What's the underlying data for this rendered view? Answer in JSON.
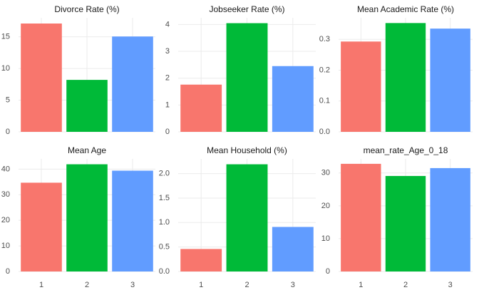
{
  "chart_data": [
    {
      "type": "bar",
      "title": "Divorce Rate (%)",
      "categories": [
        "1",
        "2",
        "3"
      ],
      "values": [
        17.1,
        8.2,
        15.05
      ],
      "color": [
        "#F8766D",
        "#00BA38",
        "#619CFF"
      ],
      "ylim": [
        0,
        18
      ],
      "yticks": [
        0,
        5,
        10,
        15
      ],
      "grid": true
    },
    {
      "type": "bar",
      "title": "Jobseeker Rate (%)",
      "categories": [
        "1",
        "2",
        "3"
      ],
      "values": [
        1.76,
        4.05,
        2.45
      ],
      "color": [
        "#F8766D",
        "#00BA38",
        "#619CFF"
      ],
      "ylim": [
        0,
        4.25
      ],
      "yticks": [
        0,
        1,
        2,
        3,
        4
      ],
      "grid": true
    },
    {
      "type": "bar",
      "title": "Mean Academic Rate (%)",
      "categories": [
        "1",
        "2",
        "3"
      ],
      "values": [
        0.293,
        0.353,
        0.335
      ],
      "color": [
        "#F8766D",
        "#00BA38",
        "#619CFF"
      ],
      "ylim": [
        0,
        0.37
      ],
      "yticks": [
        {
          "value": 0,
          "label": "0.0"
        },
        0.1,
        0.2,
        0.3
      ],
      "grid": true
    },
    {
      "type": "bar",
      "title": "Mean Age",
      "categories": [
        "1",
        "2",
        "3"
      ],
      "values": [
        34.7,
        41.9,
        39.4
      ],
      "color": [
        "#F8766D",
        "#00BA38",
        "#619CFF"
      ],
      "ylim": [
        0,
        44
      ],
      "yticks": [
        0,
        10,
        20,
        30,
        40
      ],
      "grid": true
    },
    {
      "type": "bar",
      "title": "Mean Household (%)",
      "categories": [
        "1",
        "2",
        "3"
      ],
      "values": [
        0.46,
        2.19,
        0.91
      ],
      "color": [
        "#F8766D",
        "#00BA38",
        "#619CFF"
      ],
      "ylim": [
        0,
        2.3
      ],
      "yticks": [
        {
          "value": 0,
          "label": "0.0"
        },
        0.5,
        {
          "value": 1,
          "label": "1.0"
        },
        1.5,
        {
          "value": 2,
          "label": "2.0"
        }
      ],
      "grid": true
    },
    {
      "type": "bar",
      "title": "mean_rate_Age_0_18",
      "categories": [
        "1",
        "2",
        "3"
      ],
      "values": [
        32.8,
        29.1,
        31.5
      ],
      "color": [
        "#F8766D",
        "#00BA38",
        "#619CFF"
      ],
      "ylim": [
        0,
        34.3
      ],
      "yticks": [
        0,
        10,
        20,
        30
      ],
      "grid": true
    }
  ]
}
